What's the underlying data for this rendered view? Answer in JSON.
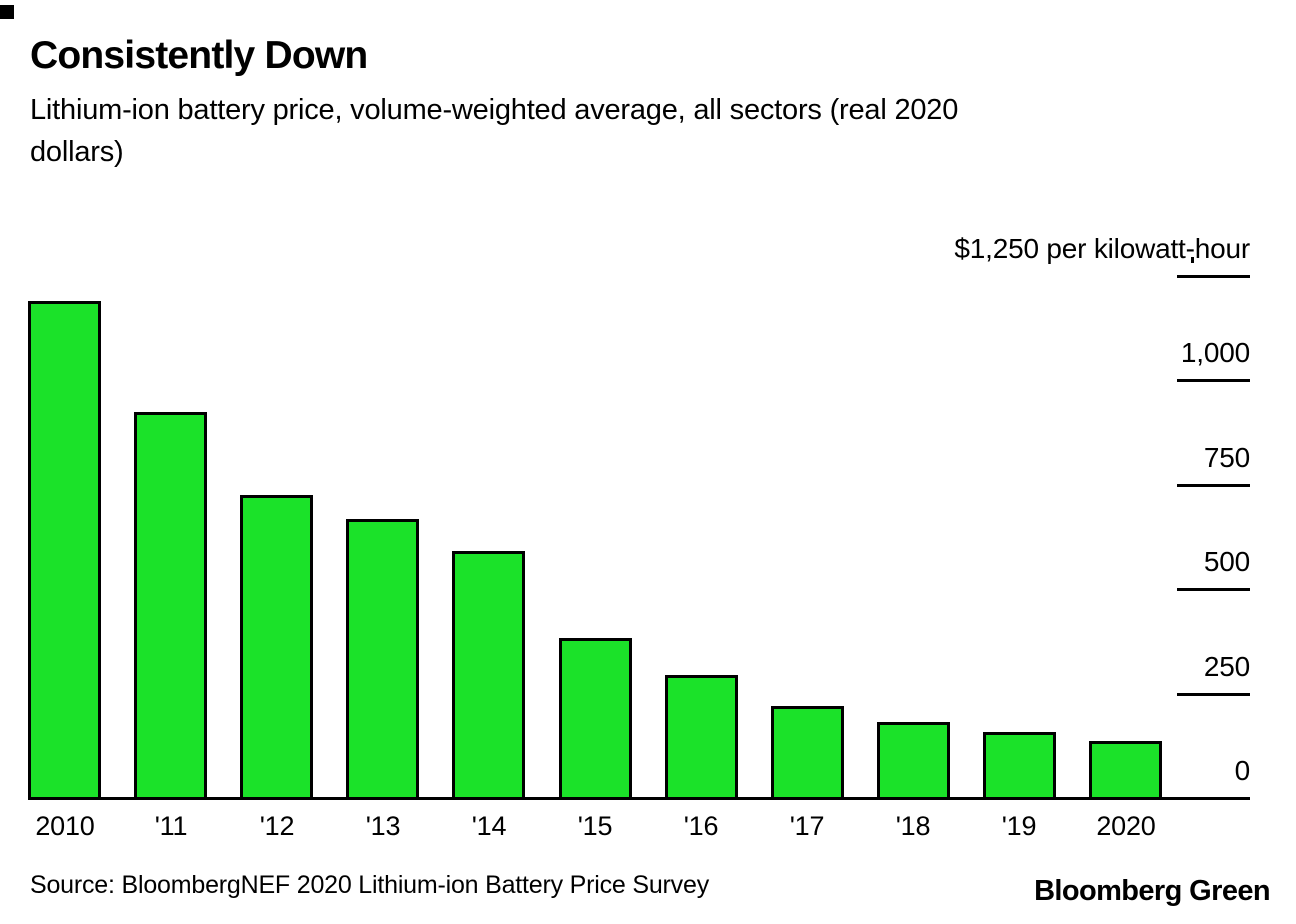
{
  "header": {
    "title": "Consistently Down",
    "subtitle": "Lithium-ion battery price, volume-weighted average, all sectors (real 2020 dollars)",
    "subtitle_line1": "Lithium-ion battery price, volume-weighted average, all sectors (real 2020",
    "subtitle_line2": "dollars)"
  },
  "chart_data": {
    "type": "bar",
    "title": "Consistently Down",
    "subtitle": "Lithium-ion battery price, volume-weighted average, all sectors (real 2020 dollars)",
    "categories": [
      "2010",
      "'11",
      "'12",
      "'13",
      "'14",
      "'15",
      "'16",
      "'17",
      "'18",
      "'19",
      "2020"
    ],
    "values": [
      1191,
      924,
      726,
      668,
      592,
      384,
      295,
      221,
      181,
      157,
      137
    ],
    "unit_axis_label": "$1,250 per kilowatt-hour",
    "y_ticks": [
      {
        "value": 1250,
        "label": "$1,250 per kilowatt-hour",
        "line": true
      },
      {
        "value": 1000,
        "label": "1,000",
        "line": true
      },
      {
        "value": 750,
        "label": "750",
        "line": true
      },
      {
        "value": 500,
        "label": "500",
        "line": true
      },
      {
        "value": 250,
        "label": "250",
        "line": true
      },
      {
        "value": 0,
        "label": "0",
        "line": false
      }
    ],
    "ylim": [
      0,
      1250
    ],
    "axis_side": "right",
    "grid": false,
    "legend": "none",
    "bar_color": "#1BE229",
    "bar_border_color": "#000000",
    "text_color": "#000000",
    "background_color": "#ffffff"
  },
  "footer": {
    "source": "Source: BloombergNEF 2020 Lithium-ion Battery Price Survey",
    "brand": "Bloomberg Green"
  }
}
